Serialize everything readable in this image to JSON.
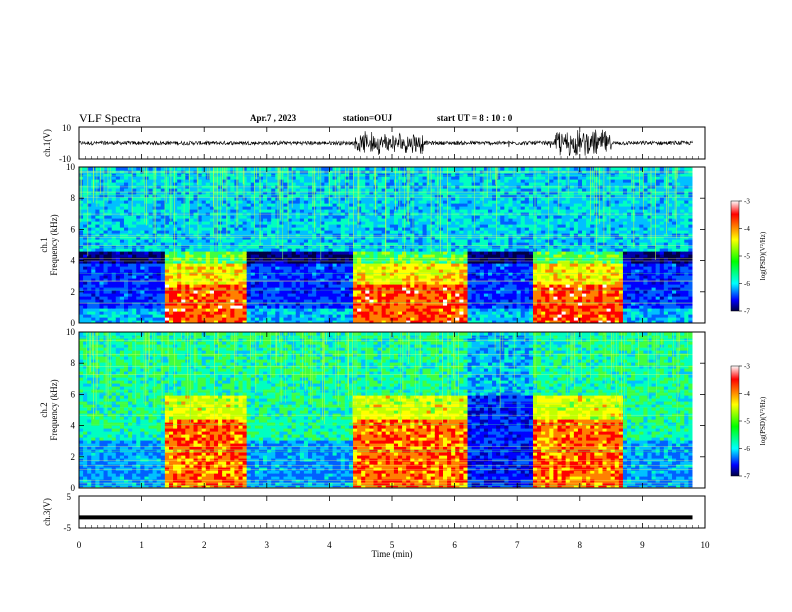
{
  "header": {
    "title": "VLF Spectra",
    "date": "Apr.7 , 2023",
    "station": "station=OUJ",
    "start": "start  UT =  8 : 10 : 0"
  },
  "chart_data": [
    {
      "type": "line",
      "panel": "waveform-ch1",
      "ylabel": "ch.1(V)",
      "ylim": [
        -10,
        10
      ],
      "yticks": [
        "10",
        "-10"
      ],
      "xlim": [
        0,
        10
      ],
      "bursts_min": [
        [
          4.4,
          5.5
        ],
        [
          7.6,
          8.5
        ]
      ]
    },
    {
      "type": "heatmap",
      "panel": "spectrogram-ch1",
      "ylabel": "ch.1 Frequency (kHz)",
      "ylim": [
        0,
        10
      ],
      "yticks": [
        "0",
        "2",
        "4",
        "6",
        "8",
        "10"
      ],
      "xlim": [
        0,
        10
      ],
      "colorbar": {
        "label": "log(PSD)(V²/Hz)",
        "range": [
          -7,
          -3
        ],
        "ticks": [
          "-3",
          "-4",
          "-5",
          "-6",
          "-7"
        ]
      },
      "high_activity_min": [
        [
          1.4,
          2.65
        ],
        [
          4.4,
          6.2
        ],
        [
          7.25,
          8.7
        ]
      ],
      "data_end_min": 9.8
    },
    {
      "type": "heatmap",
      "panel": "spectrogram-ch2",
      "ylabel": "ch.2 Frequency (kHz)",
      "ylim": [
        0,
        10
      ],
      "yticks": [
        "0",
        "2",
        "4",
        "6",
        "8",
        "10"
      ],
      "xlim": [
        0,
        10
      ],
      "colorbar": {
        "label": "log(PSD)(V²/Hz)",
        "range": [
          -7,
          -3
        ],
        "ticks": [
          "-3",
          "-4",
          "-5",
          "-6",
          "-7"
        ]
      },
      "high_activity_min": [
        [
          1.4,
          2.65
        ],
        [
          4.4,
          6.2
        ],
        [
          7.25,
          8.7
        ]
      ],
      "data_end_min": 9.8
    },
    {
      "type": "line",
      "panel": "waveform-ch3",
      "ylabel": "ch.3(V)",
      "ylim": [
        -5,
        5
      ],
      "yticks": [
        "5",
        "-5"
      ],
      "xlim": [
        0,
        10
      ],
      "level_v": -1.7,
      "data_end_min": 9.8
    }
  ],
  "xaxis": {
    "label": "Time  (min)",
    "ticks": [
      "0",
      "1",
      "2",
      "3",
      "4",
      "5",
      "6",
      "7",
      "8",
      "9",
      "10"
    ]
  }
}
